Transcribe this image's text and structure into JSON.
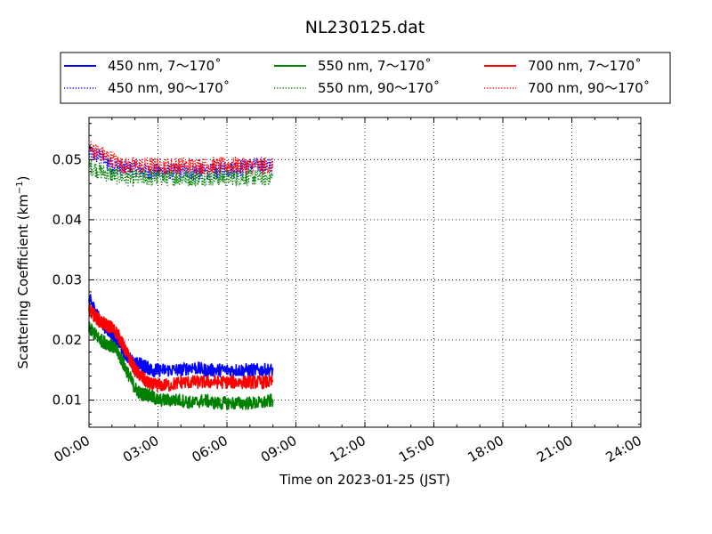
{
  "chart_data": {
    "type": "line",
    "title": "NL230125.dat",
    "xlabel": "Time on 2023-01-25 (JST)",
    "ylabel_main": "Scattering Coefficient (km",
    "ylabel_sup": "−1",
    "ylabel_close": ")",
    "x_unit": "hours",
    "xlim": [
      0,
      24
    ],
    "ylim": [
      0.0055,
      0.057
    ],
    "x_ticks": [
      {
        "value": 0,
        "label": "00:00"
      },
      {
        "value": 3,
        "label": "03:00"
      },
      {
        "value": 6,
        "label": "06:00"
      },
      {
        "value": 9,
        "label": "09:00"
      },
      {
        "value": 12,
        "label": "12:00"
      },
      {
        "value": 15,
        "label": "15:00"
      },
      {
        "value": 18,
        "label": "18:00"
      },
      {
        "value": 21,
        "label": "21:00"
      },
      {
        "value": 24,
        "label": "24:00"
      }
    ],
    "y_ticks": [
      {
        "value": 0.01,
        "label": "0.01"
      },
      {
        "value": 0.02,
        "label": "0.02"
      },
      {
        "value": 0.03,
        "label": "0.03"
      },
      {
        "value": 0.04,
        "label": "0.04"
      },
      {
        "value": 0.05,
        "label": "0.05"
      }
    ],
    "grid": true,
    "legend": "top, outside, 3 columns",
    "series": [
      {
        "name": "450 nm, 7～170˚",
        "color": "#0000ff",
        "style": "solid",
        "x": [
          0.0,
          0.25,
          0.5,
          0.75,
          1.0,
          1.25,
          1.5,
          1.75,
          2.0,
          2.25,
          2.5,
          2.75,
          3.0,
          3.5,
          4.0,
          4.5,
          5.0,
          5.5,
          6.0,
          6.5,
          7.0,
          7.5,
          8.0
        ],
        "y": [
          0.027,
          0.025,
          0.023,
          0.022,
          0.021,
          0.02,
          0.018,
          0.017,
          0.016,
          0.016,
          0.0155,
          0.015,
          0.015,
          0.015,
          0.015,
          0.0155,
          0.015,
          0.015,
          0.015,
          0.015,
          0.015,
          0.015,
          0.015
        ]
      },
      {
        "name": "450 nm, 90～170˚",
        "color": "#0000ff",
        "style": "dotted",
        "x": [
          0.0,
          0.5,
          1.0,
          1.5,
          2.0,
          2.5,
          3.0,
          3.5,
          4.0,
          4.5,
          5.0,
          5.5,
          6.0,
          6.5,
          7.0,
          7.5,
          8.0
        ],
        "y": [
          0.051,
          0.0505,
          0.049,
          0.0485,
          0.0485,
          0.048,
          0.048,
          0.048,
          0.048,
          0.048,
          0.048,
          0.048,
          0.0485,
          0.0485,
          0.049,
          0.049,
          0.049
        ]
      },
      {
        "name": "550 nm, 7～170˚",
        "color": "#008000",
        "style": "solid",
        "x": [
          0.0,
          0.25,
          0.5,
          0.75,
          1.0,
          1.25,
          1.5,
          1.75,
          2.0,
          2.25,
          2.5,
          2.75,
          3.0,
          3.5,
          4.0,
          4.5,
          5.0,
          5.5,
          6.0,
          6.5,
          7.0,
          7.5,
          8.0
        ],
        "y": [
          0.022,
          0.021,
          0.02,
          0.0195,
          0.019,
          0.018,
          0.016,
          0.014,
          0.012,
          0.011,
          0.011,
          0.0105,
          0.01,
          0.01,
          0.01,
          0.0095,
          0.01,
          0.0095,
          0.0095,
          0.0095,
          0.0095,
          0.0095,
          0.01
        ]
      },
      {
        "name": "550 nm, 90～170˚",
        "color": "#008000",
        "style": "dotted",
        "x": [
          0.0,
          0.5,
          1.0,
          1.5,
          2.0,
          2.5,
          3.0,
          3.5,
          4.0,
          4.5,
          5.0,
          5.5,
          6.0,
          6.5,
          7.0,
          7.5,
          8.0
        ],
        "y": [
          0.049,
          0.048,
          0.0475,
          0.047,
          0.047,
          0.047,
          0.047,
          0.047,
          0.047,
          0.047,
          0.047,
          0.047,
          0.047,
          0.047,
          0.047,
          0.047,
          0.047
        ]
      },
      {
        "name": "700 nm, 7～170˚",
        "color": "#ff0000",
        "style": "solid",
        "x": [
          0.0,
          0.25,
          0.5,
          0.75,
          1.0,
          1.25,
          1.5,
          1.75,
          2.0,
          2.25,
          2.5,
          2.75,
          3.0,
          3.5,
          4.0,
          4.5,
          5.0,
          5.5,
          6.0,
          6.5,
          7.0,
          7.5,
          8.0
        ],
        "y": [
          0.025,
          0.024,
          0.023,
          0.0225,
          0.022,
          0.021,
          0.019,
          0.017,
          0.015,
          0.014,
          0.013,
          0.0125,
          0.0125,
          0.0125,
          0.013,
          0.013,
          0.013,
          0.013,
          0.013,
          0.013,
          0.013,
          0.013,
          0.013
        ]
      },
      {
        "name": "700 nm, 90～170˚",
        "color": "#ff0000",
        "style": "dotted",
        "x": [
          0.0,
          0.5,
          1.0,
          1.5,
          2.0,
          2.5,
          3.0,
          3.5,
          4.0,
          4.5,
          5.0,
          5.5,
          6.0,
          6.5,
          7.0,
          7.5,
          8.0
        ],
        "y": [
          0.052,
          0.051,
          0.05,
          0.049,
          0.049,
          0.049,
          0.049,
          0.049,
          0.049,
          0.049,
          0.049,
          0.049,
          0.049,
          0.049,
          0.049,
          0.049,
          0.049
        ]
      }
    ]
  }
}
